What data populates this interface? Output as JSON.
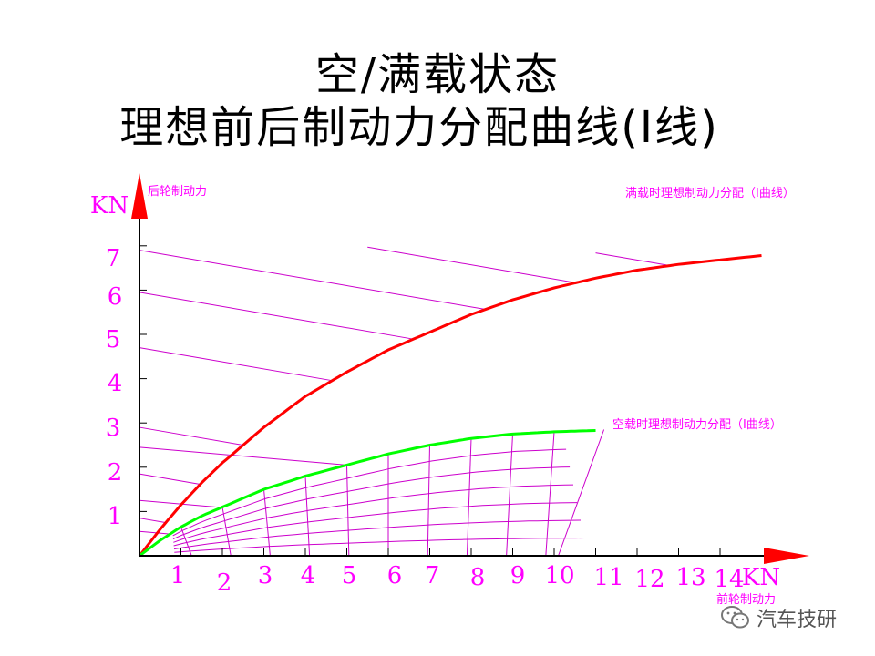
{
  "title_lines": [
    "空/满载状态",
    "理想前后制动力分配曲线(I线)"
  ],
  "watermark": {
    "text": "汽车技研",
    "icon": "wechat-icon"
  },
  "colors": {
    "axis": "#000000",
    "arrow": "#ff0000",
    "label": "#ff00ff",
    "grid": "#cc00cc",
    "full_load_curve": "#ff0000",
    "empty_load_curve": "#00ff00"
  },
  "chart_data": {
    "type": "line",
    "title": "空/满载状态 理想前后制动力分配曲线(I线)",
    "xlabel": "前轮制动力",
    "ylabel": "后轮制动力",
    "x_unit": "KN",
    "y_unit": "KN",
    "xlim": [
      0,
      15
    ],
    "ylim": [
      0,
      8
    ],
    "x_ticks": [
      "1",
      "2",
      "3",
      "4",
      "5",
      "6",
      "7",
      "8",
      "9",
      "10",
      "11",
      "12",
      "13",
      "14"
    ],
    "y_ticks": [
      "1",
      "2",
      "3",
      "4",
      "5",
      "6",
      "7"
    ],
    "grid": false,
    "series": [
      {
        "name": "满载时理想制动力分配（I曲线）",
        "color": "#ff0000",
        "x": [
          0,
          0.5,
          1,
          1.5,
          2,
          2.5,
          3,
          4,
          5,
          6,
          7,
          8,
          9,
          10,
          11,
          12,
          13,
          14,
          15
        ],
        "y": [
          0,
          0.6,
          1.15,
          1.65,
          2.1,
          2.5,
          2.9,
          3.6,
          4.15,
          4.65,
          5.05,
          5.45,
          5.78,
          6.05,
          6.27,
          6.45,
          6.58,
          6.68,
          6.78
        ]
      },
      {
        "name": "空载时理想制动力分配（I曲线）",
        "color": "#00ff00",
        "x": [
          0,
          0.5,
          1,
          1.5,
          2,
          2.5,
          3,
          4,
          5,
          6,
          7,
          8,
          9,
          10,
          11
        ],
        "y": [
          0,
          0.35,
          0.65,
          0.9,
          1.1,
          1.3,
          1.5,
          1.8,
          2.05,
          2.3,
          2.5,
          2.65,
          2.75,
          2.8,
          2.83
        ]
      }
    ]
  }
}
